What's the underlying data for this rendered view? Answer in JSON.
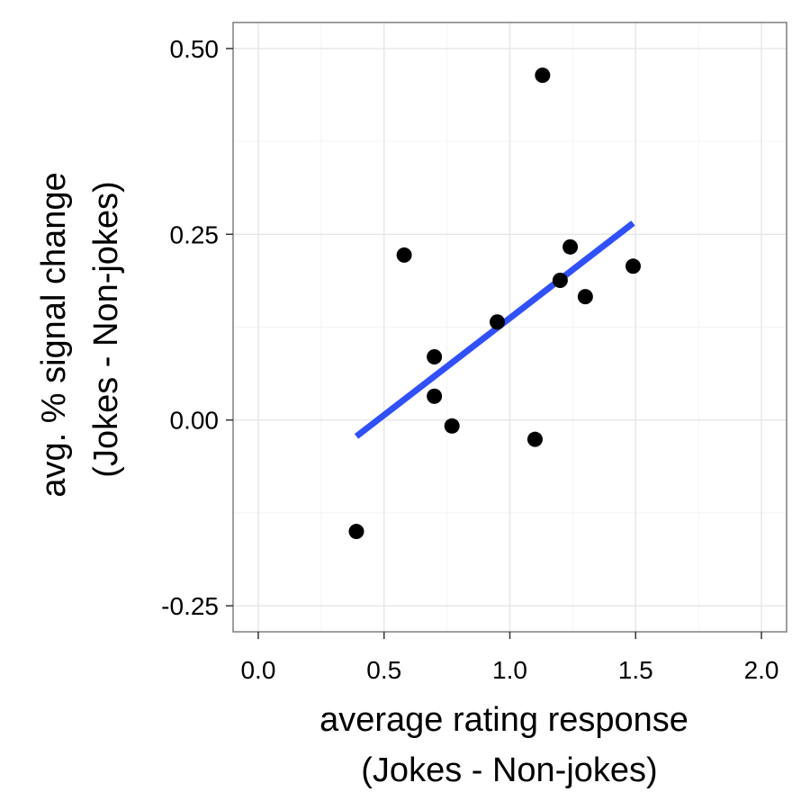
{
  "chart_data": {
    "type": "scatter",
    "xlabel_lines": [
      "average rating response",
      "(Jokes - Non-jokes)"
    ],
    "ylabel_lines": [
      "avg. % signal change",
      "(Jokes - Non-jokes)"
    ],
    "xlim": [
      -0.1,
      2.1
    ],
    "ylim": [
      -0.285,
      0.535
    ],
    "x_ticks": [
      0.0,
      0.5,
      1.0,
      1.5,
      2.0
    ],
    "x_tick_labels": [
      "0.0",
      "0.5",
      "1.0",
      "1.5",
      "2.0"
    ],
    "y_ticks": [
      -0.25,
      0.0,
      0.25,
      0.5
    ],
    "y_tick_labels": [
      "-0.25",
      "0.00",
      "0.25",
      "0.50"
    ],
    "grid": true,
    "points": [
      {
        "x": 0.39,
        "y": -0.15
      },
      {
        "x": 0.58,
        "y": 0.222
      },
      {
        "x": 0.7,
        "y": 0.085
      },
      {
        "x": 0.7,
        "y": 0.032
      },
      {
        "x": 0.77,
        "y": -0.008
      },
      {
        "x": 0.95,
        "y": 0.132
      },
      {
        "x": 1.1,
        "y": -0.026
      },
      {
        "x": 1.13,
        "y": 0.464
      },
      {
        "x": 1.2,
        "y": 0.188
      },
      {
        "x": 1.24,
        "y": 0.233
      },
      {
        "x": 1.3,
        "y": 0.166
      },
      {
        "x": 1.49,
        "y": 0.207
      }
    ],
    "fit_line": {
      "x": [
        0.39,
        1.49
      ],
      "y": [
        -0.022,
        0.265
      ]
    },
    "point_color": "#000000",
    "fit_color": "#3050f8"
  }
}
